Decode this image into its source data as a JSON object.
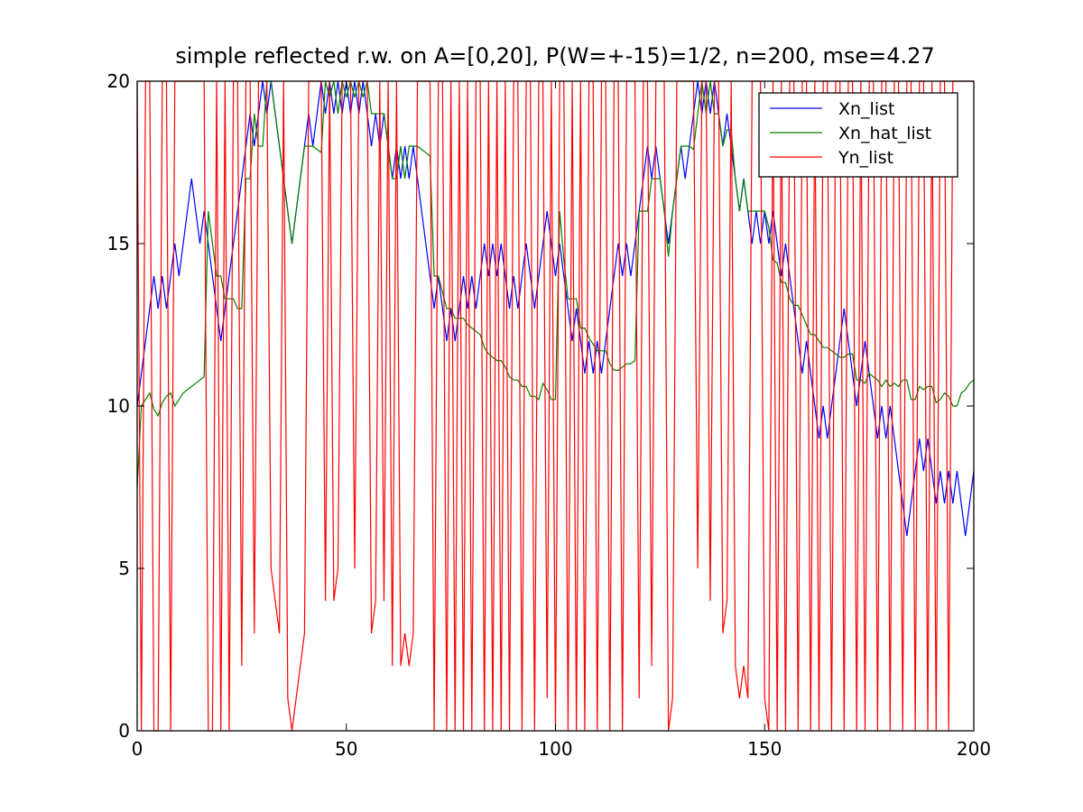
{
  "chart_data": {
    "type": "line",
    "title": "simple reflected r.w. on A=[0,20], P(W=+-15)=1/2, n=200, mse=4.27",
    "x": [
      0,
      1,
      2,
      3,
      4,
      5,
      6,
      7,
      8,
      9,
      10,
      11,
      12,
      13,
      14,
      15,
      16,
      17,
      18,
      19,
      20,
      21,
      22,
      23,
      24,
      25,
      26,
      27,
      28,
      29,
      30,
      31,
      32,
      33,
      34,
      35,
      36,
      37,
      38,
      39,
      40,
      41,
      42,
      43,
      44,
      45,
      46,
      47,
      48,
      49,
      50,
      51,
      52,
      53,
      54,
      55,
      56,
      57,
      58,
      59,
      60,
      61,
      62,
      63,
      64,
      65,
      66,
      67,
      68,
      69,
      70,
      71,
      72,
      73,
      74,
      75,
      76,
      77,
      78,
      79,
      80,
      81,
      82,
      83,
      84,
      85,
      86,
      87,
      88,
      89,
      90,
      91,
      92,
      93,
      94,
      95,
      96,
      97,
      98,
      99,
      100,
      101,
      102,
      103,
      104,
      105,
      106,
      107,
      108,
      109,
      110,
      111,
      112,
      113,
      114,
      115,
      116,
      117,
      118,
      119,
      120,
      121,
      122,
      123,
      124,
      125,
      126,
      127,
      128,
      129,
      130,
      131,
      132,
      133,
      134,
      135,
      136,
      137,
      138,
      139,
      140,
      141,
      142,
      143,
      144,
      145,
      146,
      147,
      148,
      149,
      150,
      151,
      152,
      153,
      154,
      155,
      156,
      157,
      158,
      159,
      160,
      161,
      162,
      163,
      164,
      165,
      166,
      167,
      168,
      169,
      170,
      171,
      172,
      173,
      174,
      175,
      176,
      177,
      178,
      179,
      180,
      181,
      182,
      183,
      184,
      185,
      186,
      187,
      188,
      189,
      190,
      191,
      192,
      193,
      194,
      195,
      196,
      197,
      198,
      199,
      200
    ],
    "series": [
      {
        "name": "Xn_list",
        "color": "#0000ff",
        "values": [
          10,
          11,
          12,
          13,
          14,
          13,
          14,
          13,
          14,
          15,
          14,
          15,
          16,
          17,
          16,
          15,
          16,
          15,
          14,
          13,
          12,
          13,
          14,
          15,
          16,
          17,
          18,
          19,
          18,
          19,
          20,
          19,
          20,
          19,
          18,
          17,
          16,
          15,
          16,
          17,
          18,
          19,
          18,
          19,
          20,
          19,
          20,
          19,
          20,
          19,
          20,
          19,
          20,
          19,
          20,
          19,
          18,
          19,
          18,
          19,
          18,
          17,
          18,
          17,
          18,
          17,
          18,
          17,
          16,
          15,
          14,
          13,
          14,
          13,
          12,
          13,
          12,
          13,
          14,
          13,
          14,
          13,
          14,
          15,
          14,
          15,
          14,
          15,
          14,
          13,
          14,
          13,
          14,
          15,
          14,
          13,
          14,
          15,
          16,
          15,
          14,
          15,
          14,
          13,
          12,
          13,
          12,
          11,
          12,
          11,
          12,
          11,
          12,
          13,
          14,
          15,
          14,
          15,
          14,
          15,
          16,
          17,
          18,
          17,
          18,
          17,
          16,
          15,
          16,
          17,
          18,
          17,
          18,
          19,
          20,
          19,
          20,
          19,
          20,
          19,
          18,
          19,
          18,
          17,
          16,
          17,
          16,
          15,
          16,
          15,
          16,
          15,
          16,
          15,
          14,
          15,
          14,
          13,
          12,
          11,
          12,
          11,
          10,
          9,
          10,
          9,
          10,
          11,
          12,
          13,
          12,
          11,
          10,
          11,
          12,
          11,
          10,
          9,
          10,
          9,
          10,
          9,
          8,
          7,
          6,
          7,
          8,
          9,
          8,
          9,
          8,
          7,
          8,
          7,
          8,
          7,
          8,
          7,
          6,
          7,
          8
        ]
      },
      {
        "name": "Xn_hat_list",
        "color": "#008000",
        "values": [
          7.5,
          10,
          10.2,
          10.4,
          9.9,
          9.7,
          10.1,
          10.3,
          10.4,
          10,
          10.2,
          10.4,
          10.5,
          10.6,
          10.7,
          10.8,
          10.9,
          16,
          15,
          14,
          14,
          13.3,
          13.3,
          13.3,
          13,
          13,
          17,
          17,
          19,
          18,
          18,
          20,
          20,
          19,
          18,
          17,
          16,
          15,
          16,
          17,
          18,
          18,
          18,
          17.9,
          17.8,
          20,
          19.5,
          20,
          19,
          20,
          19.5,
          20,
          19.5,
          20,
          19.5,
          20,
          19,
          19,
          19,
          19,
          18,
          17,
          17,
          18,
          17,
          18,
          18,
          18,
          17.9,
          17.8,
          17.7,
          14,
          14,
          13.5,
          13,
          13,
          12.7,
          12.7,
          12.7,
          12.5,
          12.4,
          12.3,
          12.2,
          11.8,
          11.6,
          11.5,
          11.4,
          11.4,
          11.2,
          10.9,
          10.8,
          10.8,
          10.6,
          10.6,
          10.3,
          10.3,
          10.2,
          10.7,
          10.5,
          10.2,
          10.2,
          16,
          14.5,
          13.3,
          13.3,
          13.3,
          12.4,
          12.4,
          12.1,
          11.9,
          11.7,
          11.7,
          11.7,
          11.3,
          11.1,
          11.1,
          11.2,
          11.3,
          11.3,
          11.4,
          16,
          16,
          16,
          17,
          17,
          17,
          16,
          14.6,
          16,
          17,
          18,
          18,
          18,
          17.9,
          19,
          20,
          19,
          20,
          19,
          19,
          18,
          18.5,
          18.5,
          17,
          16,
          17,
          16,
          16,
          16,
          16,
          16,
          15.5,
          14.5,
          14.4,
          13.8,
          13.8,
          13.3,
          13.1,
          13.1,
          12.8,
          12.5,
          12.2,
          12.2,
          12,
          11.8,
          11.8,
          11.7,
          11.6,
          11.5,
          11.5,
          11.6,
          11.6,
          10.8,
          10.8,
          10.7,
          11,
          10.9,
          10.8,
          10.6,
          10.8,
          10.6,
          10.7,
          10.6,
          10.8,
          10.8,
          10.2,
          10.2,
          10.6,
          10.5,
          10.6,
          10.6,
          10.1,
          10.2,
          10.4,
          10.3,
          10,
          10,
          10.4,
          10.5,
          10.7,
          10.8
        ]
      },
      {
        "name": "Yn_list",
        "color": "#ff0000",
        "values": [
          20,
          0,
          20,
          20,
          0,
          0,
          20,
          20,
          0,
          20,
          20,
          20,
          20,
          20,
          20,
          20,
          20,
          0,
          0,
          20,
          0,
          20,
          0,
          20,
          20,
          2,
          20,
          20,
          3,
          20,
          20,
          20,
          5,
          4,
          3,
          20,
          1,
          0,
          1,
          2,
          3,
          20,
          20,
          20,
          20,
          4,
          20,
          4,
          5,
          20,
          20,
          20,
          5,
          20,
          20,
          20,
          3,
          4,
          20,
          4,
          20,
          2,
          20,
          2,
          3,
          2,
          3,
          20,
          20,
          20,
          20,
          0,
          20,
          20,
          0,
          20,
          0,
          20,
          0,
          20,
          0,
          20,
          20,
          0,
          20,
          0,
          20,
          0,
          20,
          0,
          20,
          20,
          0,
          20,
          20,
          0,
          20,
          20,
          1,
          20,
          0,
          20,
          20,
          0,
          20,
          0,
          20,
          0,
          20,
          20,
          0,
          20,
          20,
          0,
          20,
          20,
          0,
          20,
          20,
          20,
          1,
          20,
          20,
          2,
          20,
          20,
          20,
          0,
          1,
          20,
          20,
          20,
          20,
          20,
          5,
          20,
          20,
          4,
          20,
          20,
          3,
          4,
          20,
          2,
          1,
          2,
          1,
          20,
          20,
          20,
          1,
          0,
          20,
          0,
          20,
          0,
          20,
          20,
          0,
          20,
          20,
          0,
          20,
          0,
          20,
          20,
          0,
          20,
          20,
          0,
          20,
          20,
          0,
          20,
          0,
          20,
          20,
          0,
          20,
          20,
          0,
          20,
          20,
          0,
          20,
          20,
          0,
          20,
          20,
          0,
          20,
          0,
          20,
          20,
          0,
          20,
          20,
          20,
          20,
          20,
          20
        ]
      }
    ],
    "xlim": [
      0,
      200
    ],
    "xticks": [
      0,
      50,
      100,
      150,
      200
    ],
    "ylim": [
      0,
      20
    ],
    "yticks": [
      0,
      5,
      10,
      15,
      20
    ],
    "legend": "upper right"
  }
}
